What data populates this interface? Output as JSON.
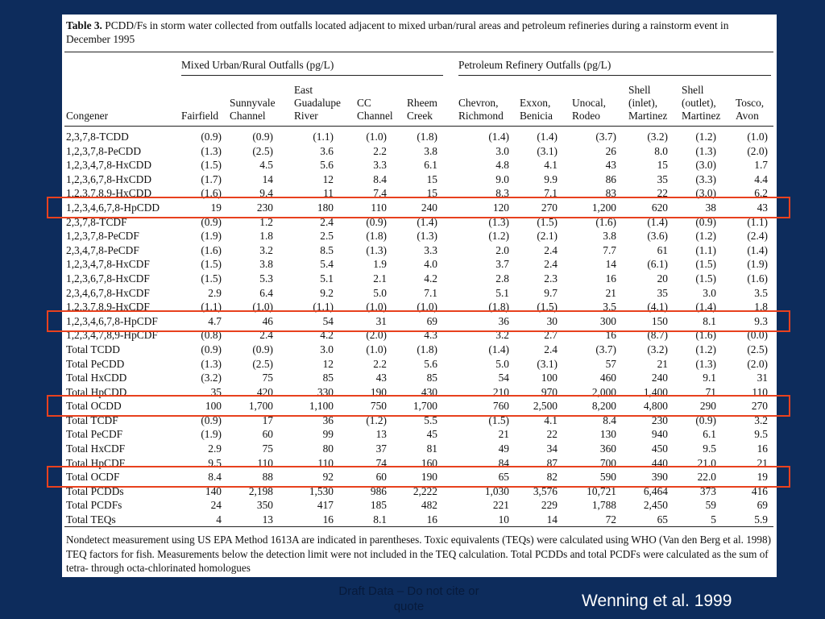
{
  "table": {
    "caption_label": "Table 3.",
    "caption_text": "PCDD/Fs in storm water collected from outfalls located adjacent to mixed urban/rural areas and petroleum refineries during a rainstorm event in December 1995",
    "group_headers": [
      "Mixed Urban/Rural Outfalls (pg/L)",
      "Petroleum Refinery Outfalls (pg/L)"
    ],
    "column_headers": [
      "Congener",
      "Fairfield",
      "Sunnyvale\nChannel",
      "East\nGuadalupe\nRiver",
      "CC\nChannel",
      "Rheem\nCreek",
      "Chevron,\nRichmond",
      "Exxon,\nBenicia",
      "Unocal,\nRodeo",
      "Shell\n(inlet),\nMartinez",
      "Shell\n(outlet),\nMartinez",
      "Tosco,\nAvon"
    ],
    "rows": [
      [
        "2,3,7,8-TCDD",
        "(0.9)",
        "(0.9)",
        "(1.1)",
        "(1.0)",
        "(1.8)",
        "(1.4)",
        "(1.4)",
        "(3.7)",
        "(3.2)",
        "(1.2)",
        "(1.0)"
      ],
      [
        "1,2,3,7,8-PeCDD",
        "(1.3)",
        "(2.5)",
        "3.6",
        "2.2",
        "3.8",
        "3.0",
        "(3.1)",
        "26",
        "8.0",
        "(1.3)",
        "(2.0)"
      ],
      [
        "1,2,3,4,7,8-HxCDD",
        "(1.5)",
        "4.5",
        "5.6",
        "3.3",
        "6.1",
        "4.8",
        "4.1",
        "43",
        "15",
        "(3.0)",
        "1.7"
      ],
      [
        "1,2,3,6,7,8-HxCDD",
        "(1.7)",
        "14",
        "12",
        "8.4",
        "15",
        "9.0",
        "9.9",
        "86",
        "35",
        "(3.3)",
        "4.4"
      ],
      [
        "1,2,3,7,8,9-HxCDD",
        "(1.6)",
        "9.4",
        "11",
        "7.4",
        "15",
        "8.3",
        "7.1",
        "83",
        "22",
        "(3.0)",
        "6.2"
      ],
      [
        "1,2,3,4,6,7,8-HpCDD",
        "19",
        "230",
        "180",
        "110",
        "240",
        "120",
        "270",
        "1,200",
        "620",
        "38",
        "43"
      ],
      [
        "2,3,7,8-TCDF",
        "(0.9)",
        "1.2",
        "2.4",
        "(0.9)",
        "(1.4)",
        "(1.3)",
        "(1.5)",
        "(1.6)",
        "(1.4)",
        "(0.9)",
        "(1.1)"
      ],
      [
        "1,2,3,7,8-PeCDF",
        "(1.9)",
        "1.8",
        "2.5",
        "(1.8)",
        "(1.3)",
        "(1.2)",
        "(2.1)",
        "3.8",
        "(3.6)",
        "(1.2)",
        "(2.4)"
      ],
      [
        "2,3,4,7,8-PeCDF",
        "(1.6)",
        "3.2",
        "8.5",
        "(1.3)",
        "3.3",
        "2.0",
        "2.4",
        "7.7",
        "61",
        "(1.1)",
        "(1.4)"
      ],
      [
        "1,2,3,4,7,8-HxCDF",
        "(1.5)",
        "3.8",
        "5.4",
        "1.9",
        "4.0",
        "3.7",
        "2.4",
        "14",
        "(6.1)",
        "(1.5)",
        "(1.9)"
      ],
      [
        "1,2,3,6,7,8-HxCDF",
        "(1.5)",
        "5.3",
        "5.1",
        "2.1",
        "4.2",
        "2.8",
        "2.3",
        "16",
        "20",
        "(1.5)",
        "(1.6)"
      ],
      [
        "2,3,4,6,7,8-HxCDF",
        "2.9",
        "6.4",
        "9.2",
        "5.0",
        "7.1",
        "5.1",
        "9.7",
        "21",
        "35",
        "3.0",
        "3.5"
      ],
      [
        "1,2,3,7,8,9-HxCDF",
        "(1.1)",
        "(1.0)",
        "(1.1)",
        "(1.0)",
        "(1.0)",
        "(1.8)",
        "(1.5)",
        "3.5",
        "(4.1)",
        "(1.4)",
        "1.8"
      ],
      [
        "1,2,3,4,6,7,8-HpCDF",
        "4.7",
        "46",
        "54",
        "31",
        "69",
        "36",
        "30",
        "300",
        "150",
        "8.1",
        "9.3"
      ],
      [
        "1,2,3,4,7,8,9-HpCDF",
        "(0.8)",
        "2.4",
        "4.2",
        "(2.0)",
        "4.3",
        "3.2",
        "2.7",
        "16",
        "(8.7)",
        "(1.6)",
        "(0.0)"
      ],
      [
        "Total TCDD",
        "(0.9)",
        "(0.9)",
        "3.0",
        "(1.0)",
        "(1.8)",
        "(1.4)",
        "2.4",
        "(3.7)",
        "(3.2)",
        "(1.2)",
        "(2.5)"
      ],
      [
        "Total PeCDD",
        "(1.3)",
        "(2.5)",
        "12",
        "2.2",
        "5.6",
        "5.0",
        "(3.1)",
        "57",
        "21",
        "(1.3)",
        "(2.0)"
      ],
      [
        "Total HxCDD",
        "(3.2)",
        "75",
        "85",
        "43",
        "85",
        "54",
        "100",
        "460",
        "240",
        "9.1",
        "31"
      ],
      [
        "Total HpCDD",
        "35",
        "420",
        "330",
        "190",
        "430",
        "210",
        "970",
        "2,000",
        "1,400",
        "71",
        "110"
      ],
      [
        "Total OCDD",
        "100",
        "1,700",
        "1,100",
        "750",
        "1,700",
        "760",
        "2,500",
        "8,200",
        "4,800",
        "290",
        "270"
      ],
      [
        "Total TCDF",
        "(0.9)",
        "17",
        "36",
        "(1.2)",
        "5.5",
        "(1.5)",
        "4.1",
        "8.4",
        "230",
        "(0.9)",
        "3.2"
      ],
      [
        "Total PeCDF",
        "(1.9)",
        "60",
        "99",
        "13",
        "45",
        "21",
        "22",
        "130",
        "940",
        "6.1",
        "9.5"
      ],
      [
        "Total HxCDF",
        "2.9",
        "75",
        "80",
        "37",
        "81",
        "49",
        "34",
        "360",
        "450",
        "9.5",
        "16"
      ],
      [
        "Total HpCDF",
        "9.5",
        "110",
        "110",
        "74",
        "160",
        "84",
        "87",
        "700",
        "440",
        "21.0",
        "21"
      ],
      [
        "Total OCDF",
        "8.4",
        "88",
        "92",
        "60",
        "190",
        "65",
        "82",
        "590",
        "390",
        "22.0",
        "19"
      ],
      [
        "Total PCDDs",
        "140",
        "2,198",
        "1,530",
        "986",
        "2,222",
        "1,030",
        "3,576",
        "10,721",
        "6,464",
        "373",
        "416"
      ],
      [
        "Total PCDFs",
        "24",
        "350",
        "417",
        "185",
        "482",
        "221",
        "229",
        "1,788",
        "2,450",
        "59",
        "69"
      ],
      [
        "Total TEQs",
        "4",
        "13",
        "16",
        "8.1",
        "16",
        "10",
        "14",
        "72",
        "65",
        "5",
        "5.9"
      ]
    ],
    "highlighted_rows": [
      "1,2,3,4,6,7,8-HpCDD",
      "1,2,3,4,6,7,8-HpCDF",
      "Total OCDD",
      "Total OCDF"
    ],
    "footnote": "Nondetect measurement using US EPA Method 1613A are indicated in parentheses. Toxic equivalents (TEQs) were calculated using WHO (Van den Berg et al. 1998) TEQ factors for fish. Measurements below the detection limit were not included in the TEQ calculation. Total PCDDs and total PCDFs were calculated as the sum of tetra- through octa-chlorinated homologues"
  },
  "slide": {
    "draft_notice": "Draft Data – Do not cite or quote",
    "citation": "Wenning et al. 1999"
  },
  "colors": {
    "background": "#0d2c5c",
    "highlight": "#e8411e"
  }
}
